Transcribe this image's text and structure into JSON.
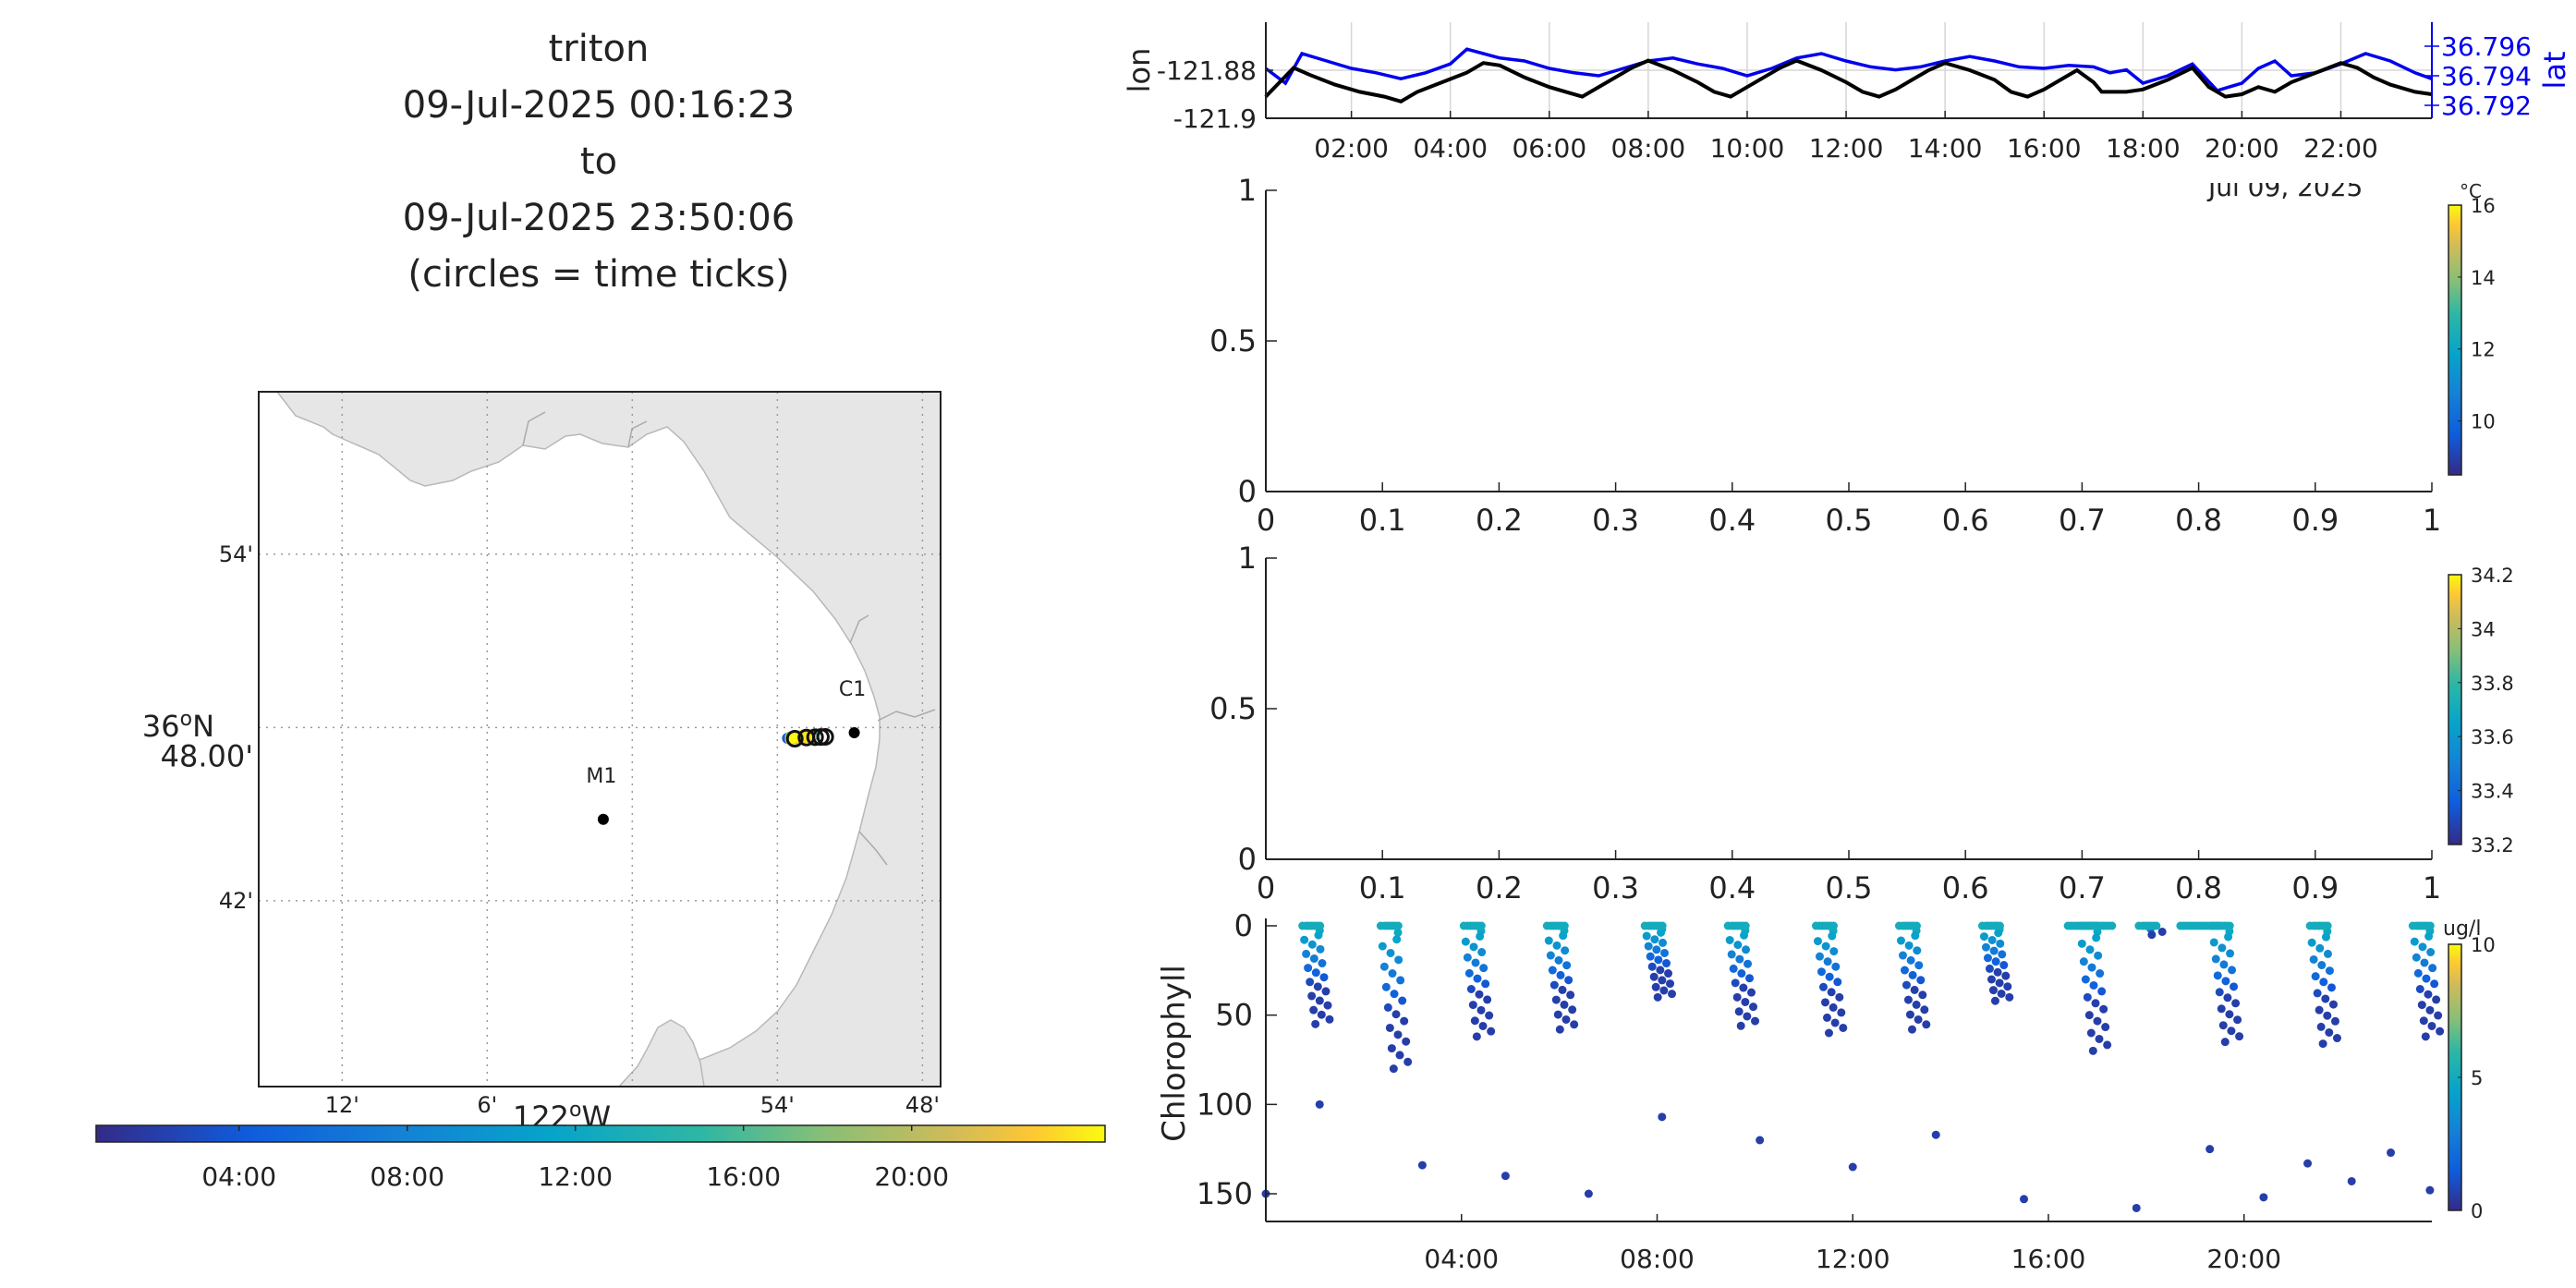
{
  "title": {
    "lines": [
      "triton",
      "09-Jul-2025 00:16:23",
      "to",
      "09-Jul-2025 23:50:06",
      "(circles = time ticks)"
    ]
  },
  "map": {
    "lat_ticks": [
      {
        "value": 36.9,
        "label": "54'"
      },
      {
        "value": 36.8,
        "label": "48.00'"
      },
      {
        "value": 36.7,
        "label": "42'"
      }
    ],
    "lat_degree_label": "36",
    "lat_degree_suffix": "N",
    "lon_ticks": [
      {
        "value": -122.2,
        "label": "12'"
      },
      {
        "value": -122.1,
        "label": "6'"
      },
      {
        "value": -121.9,
        "label": "54'"
      },
      {
        "value": -121.8,
        "label": "48'"
      }
    ],
    "lon_degree_label": "122",
    "lon_degree_suffix": "W",
    "stations": [
      {
        "name": "M1",
        "lon": -122.02,
        "lat": 36.747
      },
      {
        "name": "C1",
        "lon": -121.847,
        "lat": 36.797
      }
    ],
    "land_color": "#e6e6e6",
    "track_colorbar": {
      "ticks": [
        "04:00",
        "08:00",
        "12:00",
        "16:00",
        "20:00"
      ]
    }
  },
  "chart_data": [
    {
      "type": "line",
      "name": "position time series",
      "xlabel": "",
      "ylabel_left": "lon",
      "ylabel_right": "lat",
      "x_ticks": [
        "02:00",
        "04:00",
        "06:00",
        "08:00",
        "10:00",
        "12:00",
        "14:00",
        "16:00",
        "18:00",
        "20:00",
        "22:00"
      ],
      "x_date_label": "Jul 09, 2025",
      "y_left_ticks": [
        "-121.88",
        "-121.9"
      ],
      "y_right_ticks": [
        "36.796",
        "36.794",
        "36.792"
      ],
      "grid": true,
      "series": [
        {
          "name": "lon",
          "color": "#000000",
          "axis": "left",
          "x": [
            "00:16",
            "00:50",
            "01:10",
            "01:40",
            "02:10",
            "02:40",
            "03:00",
            "03:20",
            "03:50",
            "04:20",
            "04:40",
            "05:00",
            "05:30",
            "06:00",
            "06:20",
            "06:40",
            "07:10",
            "07:40",
            "08:00",
            "08:30",
            "09:00",
            "09:20",
            "09:40",
            "10:00",
            "10:20",
            "10:40",
            "11:00",
            "11:30",
            "12:00",
            "12:20",
            "12:40",
            "13:00",
            "13:20",
            "13:40",
            "14:00",
            "14:30",
            "15:00",
            "15:20",
            "15:40",
            "16:00",
            "16:20",
            "16:40",
            "17:00",
            "17:10",
            "17:40",
            "18:00",
            "18:30",
            "19:00",
            "19:20",
            "19:40",
            "20:00",
            "20:20",
            "20:40",
            "21:00",
            "21:30",
            "22:00",
            "22:20",
            "22:40",
            "23:00",
            "23:30",
            "23:50"
          ],
          "values": [
            -121.891,
            -121.879,
            -121.882,
            -121.886,
            -121.889,
            -121.891,
            -121.893,
            -121.889,
            -121.885,
            -121.881,
            -121.877,
            -121.878,
            -121.883,
            -121.887,
            -121.889,
            -121.891,
            -121.885,
            -121.879,
            -121.876,
            -121.88,
            -121.885,
            -121.889,
            -121.891,
            -121.887,
            -121.883,
            -121.879,
            -121.876,
            -121.88,
            -121.885,
            -121.889,
            -121.891,
            -121.888,
            -121.884,
            -121.88,
            -121.877,
            -121.88,
            -121.884,
            -121.889,
            -121.891,
            -121.888,
            -121.884,
            -121.88,
            -121.885,
            -121.889,
            -121.889,
            -121.888,
            -121.884,
            -121.879,
            -121.887,
            -121.891,
            -121.89,
            -121.887,
            -121.889,
            -121.885,
            -121.881,
            -121.877,
            -121.879,
            -121.883,
            -121.886,
            -121.889,
            -121.89
          ]
        },
        {
          "name": "lat",
          "color": "#0000ee",
          "axis": "right",
          "x": [
            "00:16",
            "00:40",
            "01:00",
            "01:30",
            "02:00",
            "02:30",
            "03:00",
            "03:30",
            "04:00",
            "04:20",
            "04:40",
            "05:00",
            "05:30",
            "06:00",
            "06:30",
            "07:00",
            "07:30",
            "08:00",
            "08:30",
            "09:00",
            "09:30",
            "10:00",
            "10:30",
            "11:00",
            "11:30",
            "12:00",
            "12:30",
            "13:00",
            "13:30",
            "14:00",
            "14:30",
            "15:00",
            "15:30",
            "16:00",
            "16:30",
            "17:00",
            "17:20",
            "17:40",
            "18:00",
            "18:30",
            "19:00",
            "19:30",
            "20:00",
            "20:20",
            "20:40",
            "21:00",
            "21:30",
            "22:00",
            "22:30",
            "23:00",
            "23:30",
            "23:50"
          ],
          "values": [
            36.7945,
            36.7935,
            36.7955,
            36.795,
            36.7945,
            36.7942,
            36.7938,
            36.7942,
            36.7948,
            36.7958,
            36.7955,
            36.7952,
            36.795,
            36.7945,
            36.7942,
            36.794,
            36.7945,
            36.795,
            36.7952,
            36.7948,
            36.7945,
            36.794,
            36.7945,
            36.7952,
            36.7955,
            36.795,
            36.7946,
            36.7944,
            36.7946,
            36.795,
            36.7953,
            36.795,
            36.7946,
            36.7945,
            36.7947,
            36.7946,
            36.7942,
            36.7944,
            36.7935,
            36.794,
            36.7948,
            36.793,
            36.7935,
            36.7945,
            36.795,
            36.794,
            36.7942,
            36.7948,
            36.7955,
            36.795,
            36.7942,
            36.7938
          ]
        }
      ]
    },
    {
      "type": "scatter",
      "name": "temperature",
      "empty": true,
      "xlim": [
        0,
        1
      ],
      "ylim": [
        0,
        1
      ],
      "x_ticks": [
        "0",
        "0.1",
        "0.2",
        "0.3",
        "0.4",
        "0.5",
        "0.6",
        "0.7",
        "0.8",
        "0.9",
        "1"
      ],
      "y_ticks": [
        "1",
        "0.5",
        "0"
      ],
      "colorbar": {
        "unit": "°C",
        "ticks": [
          "16",
          "14",
          "12",
          "10"
        ],
        "range": [
          8.5,
          16
        ]
      }
    },
    {
      "type": "scatter",
      "name": "salinity",
      "empty": true,
      "xlim": [
        0,
        1
      ],
      "ylim": [
        0,
        1
      ],
      "x_ticks": [
        "0",
        "0.1",
        "0.2",
        "0.3",
        "0.4",
        "0.5",
        "0.6",
        "0.7",
        "0.8",
        "0.9",
        "1"
      ],
      "y_ticks": [
        "1",
        "0.5",
        "0"
      ],
      "colorbar": {
        "unit": "",
        "ticks": [
          "34.2",
          "34",
          "33.8",
          "33.6",
          "33.4",
          "33.2"
        ],
        "range": [
          33.2,
          34.2
        ]
      }
    },
    {
      "type": "scatter",
      "name": "chlorophyll depth profile",
      "ylabel": "Chlorophyll",
      "y_ticks": [
        "0",
        "50",
        "100",
        "150"
      ],
      "ylim": [
        0,
        155
      ],
      "x_ticks": [
        "04:00",
        "08:00",
        "12:00",
        "16:00",
        "20:00"
      ],
      "colorbar": {
        "unit": "ug/l",
        "ticks": [
          "10",
          "5",
          "0"
        ],
        "range": [
          0,
          10
        ]
      },
      "profiles_hours": [
        0.9,
        2.5,
        4.2,
        5.9,
        7.9,
        9.6,
        11.4,
        13.1,
        14.8,
        16.8,
        18.0,
        19.5,
        21.5,
        23.6
      ],
      "profiles_max_depth": [
        55,
        80,
        62,
        58,
        40,
        56,
        60,
        58,
        42,
        70,
        5,
        65,
        66,
        62
      ],
      "outliers": [
        {
          "hour": 0.0,
          "depth": 150
        },
        {
          "hour": 1.1,
          "depth": 100
        },
        {
          "hour": 3.2,
          "depth": 134
        },
        {
          "hour": 4.9,
          "depth": 140
        },
        {
          "hour": 6.6,
          "depth": 150
        },
        {
          "hour": 8.1,
          "depth": 107
        },
        {
          "hour": 10.1,
          "depth": 120
        },
        {
          "hour": 12.0,
          "depth": 135
        },
        {
          "hour": 13.7,
          "depth": 117
        },
        {
          "hour": 15.5,
          "depth": 153
        },
        {
          "hour": 17.8,
          "depth": 158
        },
        {
          "hour": 19.3,
          "depth": 125
        },
        {
          "hour": 20.4,
          "depth": 152
        },
        {
          "hour": 21.3,
          "depth": 133
        },
        {
          "hour": 22.2,
          "depth": 143
        },
        {
          "hour": 23.0,
          "depth": 127
        },
        {
          "hour": 23.8,
          "depth": 148
        }
      ]
    }
  ]
}
